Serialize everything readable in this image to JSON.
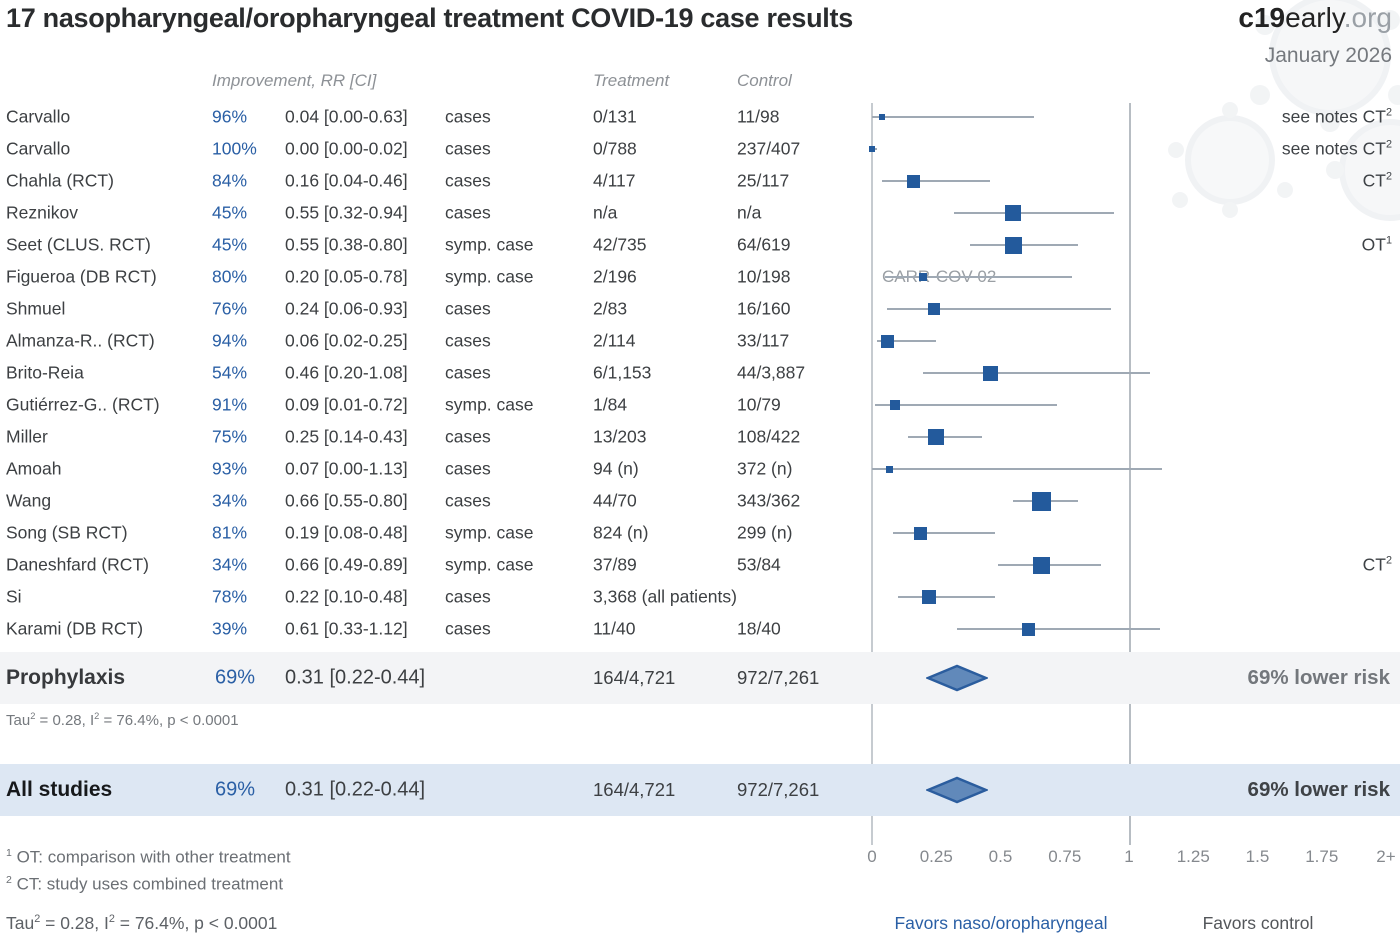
{
  "header": {
    "title": "17 nasopharyngeal/oropharyngeal treatment COVID-19 case results",
    "brand_bold": "c19",
    "brand_regular": "early",
    "brand_suffix": ".org",
    "date": "January 2026"
  },
  "columns": {
    "improvement": "Improvement, RR [CI]",
    "treatment": "Treatment",
    "control": "Control"
  },
  "chart_data": {
    "type": "scatter",
    "subtype": "forest-plot",
    "x_axis": {
      "scale_note": "risk ratio, 0 at x=872px, 1 at x=1129px",
      "ticks": [
        {
          "label": "0",
          "v": 0
        },
        {
          "label": "0.25",
          "v": 0.25
        },
        {
          "label": "0.5",
          "v": 0.5
        },
        {
          "label": "0.75",
          "v": 0.75
        },
        {
          "label": "1",
          "v": 1
        },
        {
          "label": "1.25",
          "v": 1.25
        },
        {
          "label": "1.5",
          "v": 1.5
        },
        {
          "label": "1.75",
          "v": 1.75
        },
        {
          "label": "2+",
          "v": 2
        }
      ],
      "favors_left": "Favors naso/oropharyngeal",
      "favors_right": "Favors control"
    },
    "studies": [
      {
        "name": "Carvallo",
        "improvement": "96%",
        "rr_ci": "0.04 [0.00-0.63]",
        "rr": 0.04,
        "low": 0.0,
        "high": 0.63,
        "outcome": "cases",
        "treatment": "0/131",
        "control": "11/98",
        "note": "see notes CT",
        "note_sup": "2",
        "weight": 6
      },
      {
        "name": "Carvallo",
        "improvement": "100%",
        "rr_ci": "0.00 [0.00-0.02]",
        "rr": 0.0,
        "low": 0.0,
        "high": 0.02,
        "outcome": "cases",
        "treatment": "0/788",
        "control": "237/407",
        "note": "see notes CT",
        "note_sup": "2",
        "weight": 6
      },
      {
        "name": "Chahla (RCT)",
        "improvement": "84%",
        "rr_ci": "0.16 [0.04-0.46]",
        "rr": 0.16,
        "low": 0.04,
        "high": 0.46,
        "outcome": "cases",
        "treatment": "4/117",
        "control": "25/117",
        "note": "CT",
        "note_sup": "2",
        "weight": 13
      },
      {
        "name": "Reznikov",
        "improvement": "45%",
        "rr_ci": "0.55 [0.32-0.94]",
        "rr": 0.55,
        "low": 0.32,
        "high": 0.94,
        "outcome": "cases",
        "treatment": "n/a",
        "control": "n/a",
        "weight": 16
      },
      {
        "name": "Seet (CLUS. RCT)",
        "improvement": "45%",
        "rr_ci": "0.55 [0.38-0.80]",
        "rr": 0.55,
        "low": 0.38,
        "high": 0.8,
        "outcome": "symp. case",
        "treatment": "42/735",
        "control": "64/619",
        "note": "OT",
        "note_sup": "1",
        "weight": 17
      },
      {
        "name": "Figueroa (DB RCT)",
        "improvement": "80%",
        "rr_ci": "0.20 [0.05-0.78]",
        "rr": 0.2,
        "low": 0.05,
        "high": 0.78,
        "outcome": "symp. case",
        "treatment": "2/196",
        "control": "10/198",
        "annotation": "CARR-COV-02",
        "weight": 8
      },
      {
        "name": "Shmuel",
        "improvement": "76%",
        "rr_ci": "0.24 [0.06-0.93]",
        "rr": 0.24,
        "low": 0.06,
        "high": 0.93,
        "outcome": "cases",
        "treatment": "2/83",
        "control": "16/160",
        "weight": 12
      },
      {
        "name": "Almanza-R.. (RCT)",
        "improvement": "94%",
        "rr_ci": "0.06 [0.02-0.25]",
        "rr": 0.06,
        "low": 0.02,
        "high": 0.25,
        "outcome": "cases",
        "treatment": "2/114",
        "control": "33/117",
        "weight": 13
      },
      {
        "name": "Brito-Reia",
        "improvement": "54%",
        "rr_ci": "0.46 [0.20-1.08]",
        "rr": 0.46,
        "low": 0.2,
        "high": 1.08,
        "outcome": "cases",
        "treatment": "6/1,153",
        "control": "44/3,887",
        "weight": 15
      },
      {
        "name": "Gutiérrez-G.. (RCT)",
        "improvement": "91%",
        "rr_ci": "0.09 [0.01-0.72]",
        "rr": 0.09,
        "low": 0.01,
        "high": 0.72,
        "outcome": "symp. case",
        "treatment": "1/84",
        "control": "10/79",
        "weight": 10
      },
      {
        "name": "Miller",
        "improvement": "75%",
        "rr_ci": "0.25 [0.14-0.43]",
        "rr": 0.25,
        "low": 0.14,
        "high": 0.43,
        "outcome": "cases",
        "treatment": "13/203",
        "control": "108/422",
        "weight": 16
      },
      {
        "name": "Amoah",
        "improvement": "93%",
        "rr_ci": "0.07 [0.00-1.13]",
        "rr": 0.07,
        "low": 0.0,
        "high": 1.13,
        "outcome": "cases",
        "treatment": "94 (n)",
        "control": "372 (n)",
        "weight": 7
      },
      {
        "name": "Wang",
        "improvement": "34%",
        "rr_ci": "0.66 [0.55-0.80]",
        "rr": 0.66,
        "low": 0.55,
        "high": 0.8,
        "outcome": "cases",
        "treatment": "44/70",
        "control": "343/362",
        "weight": 19
      },
      {
        "name": "Song (SB RCT)",
        "improvement": "81%",
        "rr_ci": "0.19 [0.08-0.48]",
        "rr": 0.19,
        "low": 0.08,
        "high": 0.48,
        "outcome": "symp. case",
        "treatment": "824 (n)",
        "control": "299 (n)",
        "weight": 13
      },
      {
        "name": "Daneshfard (RCT)",
        "improvement": "34%",
        "rr_ci": "0.66 [0.49-0.89]",
        "rr": 0.66,
        "low": 0.49,
        "high": 0.89,
        "outcome": "symp. case",
        "treatment": "37/89",
        "control": "53/84",
        "note": "CT",
        "note_sup": "2",
        "weight": 17
      },
      {
        "name": "Si",
        "improvement": "78%",
        "rr_ci": "0.22 [0.10-0.48]",
        "rr": 0.22,
        "low": 0.1,
        "high": 0.48,
        "outcome": "cases",
        "treatment": "3,368 (all patients)",
        "control": "",
        "weight": 14
      },
      {
        "name": "Karami (DB RCT)",
        "improvement": "39%",
        "rr_ci": "0.61 [0.33-1.12]",
        "rr": 0.61,
        "low": 0.33,
        "high": 1.12,
        "outcome": "cases",
        "treatment": "11/40",
        "control": "18/40",
        "weight": 13
      }
    ],
    "summaries": [
      {
        "label": "Prophylaxis",
        "improvement": "69%",
        "rr_ci": "0.31 [0.22-0.44]",
        "rr": 0.31,
        "low": 0.22,
        "high": 0.44,
        "treatment": "164/4,721",
        "control": "972/7,261",
        "risk": "69% lower risk"
      },
      {
        "label": "All studies",
        "improvement": "69%",
        "rr_ci": "0.31 [0.22-0.44]",
        "rr": 0.31,
        "low": 0.22,
        "high": 0.44,
        "treatment": "164/4,721",
        "control": "972/7,261",
        "risk": "69% lower risk"
      }
    ],
    "heterogeneity": {
      "pre": "Tau",
      "sup1": "2",
      "mid": " = 0.28, I",
      "sup2": "2",
      "post": " = 76.4%, p < 0.0001"
    }
  },
  "footnotes": [
    {
      "sup": "1",
      "text": " OT: comparison with other treatment"
    },
    {
      "sup": "2",
      "text": " CT: study uses combined treatment"
    }
  ],
  "colors": {
    "accent_blue": "#2a5fa5",
    "marker_blue": "#235a9c",
    "diamond_fill": "#6189ba",
    "diamond_border": "#2b5d9e",
    "band_gray": "#f3f4f6",
    "band_blue": "#dde7f3",
    "ci_line": "#9fa9b4"
  }
}
